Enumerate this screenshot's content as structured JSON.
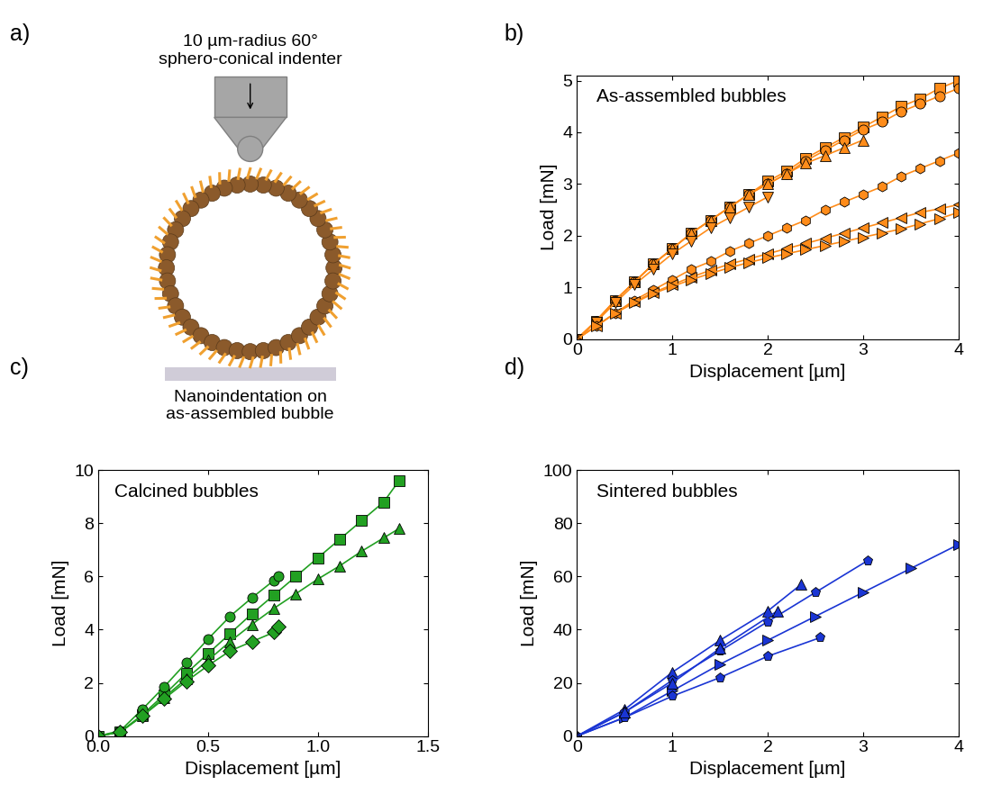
{
  "diagram": {
    "panel": "a)",
    "indenter_label": "10 µm-radius 60°\nsphero-conical indenter",
    "caption": "Nanoindentation on\nas-assembled bubble"
  },
  "chart_data": [
    {
      "type": "line",
      "panel": "b)",
      "title": "As-assembled bubbles",
      "x_label": "Displacement [µm]",
      "y_label": "Load [mN]",
      "xlim": [
        0,
        4
      ],
      "xticks": [
        0,
        1,
        2,
        3,
        4
      ],
      "ylim": [
        0,
        5.1
      ],
      "yticks": [
        0,
        1,
        2,
        3,
        4,
        5
      ],
      "series": [
        {
          "color": "#ff8c1a",
          "marker": "square",
          "x": [
            0,
            0.2,
            0.4,
            0.6,
            0.8,
            1.0,
            1.2,
            1.4,
            1.6,
            1.8,
            2.0,
            2.2,
            2.4,
            2.6,
            2.8,
            3.0,
            3.2,
            3.4,
            3.6,
            3.8,
            4.0
          ],
          "values": [
            0,
            0.35,
            0.75,
            1.1,
            1.45,
            1.75,
            2.05,
            2.3,
            2.55,
            2.8,
            3.05,
            3.25,
            3.5,
            3.7,
            3.9,
            4.1,
            4.3,
            4.5,
            4.65,
            4.85,
            5.0
          ]
        },
        {
          "color": "#ff8c1a",
          "marker": "circle",
          "x": [
            0,
            0.2,
            0.4,
            0.6,
            0.8,
            1.0,
            1.2,
            1.4,
            1.6,
            1.8,
            2.0,
            2.2,
            2.4,
            2.6,
            2.8,
            3.0,
            3.2,
            3.4,
            3.6,
            3.8,
            4.0
          ],
          "values": [
            0,
            0.35,
            0.75,
            1.1,
            1.45,
            1.75,
            2.05,
            2.3,
            2.55,
            2.8,
            3.0,
            3.2,
            3.45,
            3.65,
            3.85,
            4.05,
            4.2,
            4.4,
            4.55,
            4.7,
            4.85
          ]
        },
        {
          "color": "#ff8c1a",
          "marker": "triangle_up",
          "x": [
            0,
            0.2,
            0.4,
            0.6,
            0.8,
            1.0,
            1.2,
            1.4,
            1.6,
            1.8,
            2.0,
            2.2,
            2.4,
            2.6,
            2.8,
            3.0
          ],
          "values": [
            0,
            0.35,
            0.75,
            1.1,
            1.45,
            1.75,
            2.05,
            2.3,
            2.55,
            2.8,
            3.0,
            3.2,
            3.4,
            3.55,
            3.7,
            3.85
          ]
        },
        {
          "color": "#ff8c1a",
          "marker": "triangle_down",
          "x": [
            0,
            0.2,
            0.4,
            0.6,
            0.8,
            1.0,
            1.2,
            1.4,
            1.6,
            1.8,
            2.0
          ],
          "values": [
            0,
            0.33,
            0.7,
            1.05,
            1.35,
            1.65,
            1.9,
            2.15,
            2.35,
            2.55,
            2.75
          ]
        },
        {
          "color": "#ff8c1a",
          "marker": "hexagon",
          "x": [
            0,
            0.2,
            0.4,
            0.6,
            0.8,
            1.0,
            1.2,
            1.4,
            1.6,
            1.8,
            2.0,
            2.2,
            2.4,
            2.6,
            2.8,
            3.0,
            3.2,
            3.4,
            3.6,
            3.8,
            4.0
          ],
          "values": [
            0,
            0.25,
            0.5,
            0.75,
            0.95,
            1.15,
            1.35,
            1.5,
            1.7,
            1.85,
            2.0,
            2.15,
            2.3,
            2.5,
            2.65,
            2.8,
            2.95,
            3.15,
            3.3,
            3.45,
            3.6
          ]
        },
        {
          "color": "#ff8c1a",
          "marker": "triangle_left",
          "x": [
            0,
            0.2,
            0.4,
            0.6,
            0.8,
            1.0,
            1.2,
            1.4,
            1.6,
            1.8,
            2.0,
            2.2,
            2.4,
            2.6,
            2.8,
            3.0,
            3.2,
            3.4,
            3.6,
            3.8,
            4.0
          ],
          "values": [
            0,
            0.25,
            0.5,
            0.72,
            0.9,
            1.05,
            1.2,
            1.33,
            1.45,
            1.55,
            1.65,
            1.75,
            1.85,
            1.95,
            2.05,
            2.15,
            2.25,
            2.35,
            2.45,
            2.52,
            2.6
          ]
        },
        {
          "color": "#ff8c1a",
          "marker": "triangle_right",
          "x": [
            0,
            0.2,
            0.4,
            0.6,
            0.8,
            1.0,
            1.2,
            1.4,
            1.6,
            1.8,
            2.0,
            2.2,
            2.4,
            2.6,
            2.8,
            3.0,
            3.2,
            3.4,
            3.6,
            3.8,
            4.0
          ],
          "values": [
            0,
            0.25,
            0.5,
            0.7,
            0.88,
            1.02,
            1.15,
            1.27,
            1.38,
            1.48,
            1.57,
            1.65,
            1.73,
            1.81,
            1.89,
            1.97,
            2.05,
            2.13,
            2.23,
            2.33,
            2.45
          ]
        }
      ]
    },
    {
      "type": "line",
      "panel": "c)",
      "title": "Calcined bubbles",
      "x_label": "Displacement [µm]",
      "y_label": "Load [mN]",
      "xlim": [
        0,
        1.5
      ],
      "xticks": [
        {
          "value": 0,
          "label": "0.0"
        },
        0.5,
        {
          "value": 1,
          "label": "1.0"
        },
        1.5
      ],
      "ylim": [
        0,
        10
      ],
      "yticks": [
        0,
        2,
        4,
        6,
        8,
        10
      ],
      "series": [
        {
          "color": "#22a022",
          "marker": "square",
          "x": [
            0,
            0.1,
            0.2,
            0.3,
            0.4,
            0.5,
            0.6,
            0.7,
            0.8,
            0.9,
            1.0,
            1.1,
            1.2,
            1.3,
            1.37
          ],
          "values": [
            0,
            0.15,
            0.8,
            1.55,
            2.35,
            3.1,
            3.85,
            4.6,
            5.3,
            6.0,
            6.7,
            7.4,
            8.1,
            8.8,
            9.6
          ]
        },
        {
          "color": "#22a022",
          "marker": "circle",
          "x": [
            0,
            0.1,
            0.2,
            0.3,
            0.4,
            0.5,
            0.6,
            0.7,
            0.8,
            0.82
          ],
          "values": [
            0,
            0.2,
            1.0,
            1.85,
            2.75,
            3.65,
            4.5,
            5.2,
            5.85,
            6.0
          ]
        },
        {
          "color": "#22a022",
          "marker": "triangle_up",
          "x": [
            0,
            0.1,
            0.2,
            0.3,
            0.4,
            0.5,
            0.6,
            0.7,
            0.8,
            0.9,
            1.0,
            1.1,
            1.2,
            1.3,
            1.37
          ],
          "values": [
            0,
            0.15,
            0.75,
            1.45,
            2.15,
            2.85,
            3.55,
            4.2,
            4.8,
            5.35,
            5.9,
            6.4,
            6.95,
            7.45,
            7.8
          ]
        },
        {
          "color": "#22a022",
          "marker": "diamond",
          "x": [
            0,
            0.1,
            0.2,
            0.3,
            0.4,
            0.5,
            0.6,
            0.7,
            0.8,
            0.82
          ],
          "values": [
            0,
            0.15,
            0.75,
            1.4,
            2.05,
            2.65,
            3.2,
            3.55,
            3.9,
            4.1
          ]
        }
      ]
    },
    {
      "type": "line",
      "panel": "d)",
      "title": "Sintered bubbles",
      "x_label": "Displacement [µm]",
      "y_label": "Load [mN]",
      "xlim": [
        0,
        4
      ],
      "xticks": [
        0,
        1,
        2,
        3,
        4
      ],
      "ylim": [
        0,
        100
      ],
      "yticks": [
        0,
        20,
        40,
        60,
        80,
        100
      ],
      "series": [
        {
          "color": "#1a35d4",
          "marker": "triangle_up",
          "x": [
            0,
            0.5,
            1.0,
            1.5,
            2.0,
            2.35
          ],
          "values": [
            0,
            10,
            24,
            36,
            47,
            57
          ]
        },
        {
          "color": "#1a35d4",
          "marker": "pentagon",
          "x": [
            0,
            0.5,
            1.0,
            1.5,
            2.0,
            2.5,
            3.05
          ],
          "values": [
            0,
            9,
            21,
            32,
            43,
            54,
            66
          ]
        },
        {
          "color": "#1a35d4",
          "marker": "triangle_right",
          "x": [
            0,
            0.5,
            1.0,
            1.5,
            2.0,
            2.5,
            3.0,
            3.5,
            4.0
          ],
          "values": [
            0,
            7,
            17,
            27,
            36,
            45,
            54,
            63,
            72
          ]
        },
        {
          "color": "#1a35d4",
          "marker": "pentagon",
          "x": [
            0,
            0.5,
            1.0,
            1.5,
            2.0,
            2.55
          ],
          "values": [
            0,
            7,
            15,
            22,
            30,
            37
          ]
        },
        {
          "color": "#1a35d4",
          "marker": "triangle_up",
          "x": [
            0,
            0.5,
            1.0,
            1.5,
            2.1
          ],
          "values": [
            0,
            9,
            20,
            33,
            47
          ]
        }
      ]
    }
  ]
}
